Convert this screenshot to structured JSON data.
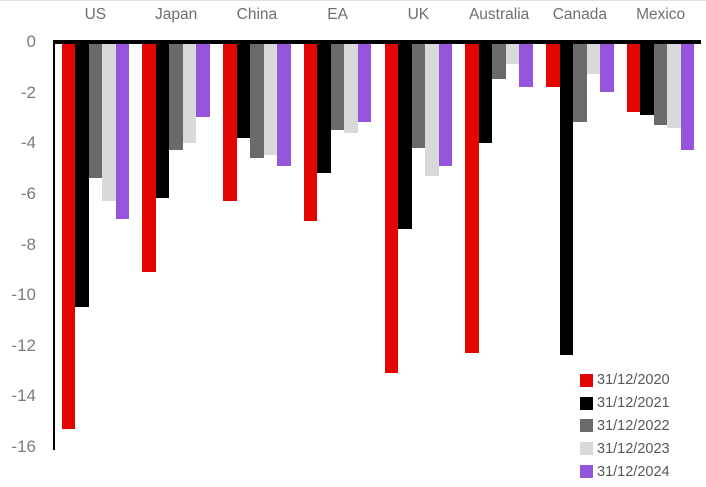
{
  "chart_data": {
    "type": "bar",
    "orientation": "vertical-negative",
    "title": "",
    "xlabel": "",
    "ylabel": "",
    "grid": false,
    "legend_position": "bottom-right",
    "ylim": [
      -16,
      0
    ],
    "y_ticks": [
      0,
      -2,
      -4,
      -6,
      -8,
      -10,
      -12,
      -14,
      -16
    ],
    "categories": [
      "US",
      "Japan",
      "China",
      "EA",
      "UK",
      "Australia",
      "Canada",
      "Mexico"
    ],
    "series": [
      {
        "name": "31/12/2020",
        "color": "#e10600",
        "values": [
          -15.2,
          -9.0,
          -6.2,
          -7.0,
          -13.0,
          -12.2,
          -1.7,
          -2.7
        ]
      },
      {
        "name": "31/12/2021",
        "color": "#000000",
        "values": [
          -10.4,
          -6.1,
          -3.7,
          -5.1,
          -7.3,
          -3.9,
          -12.3,
          -2.8
        ]
      },
      {
        "name": "31/12/2022",
        "color": "#6a6a6a",
        "values": [
          -5.3,
          -4.2,
          -4.5,
          -3.4,
          -4.1,
          -1.4,
          -3.1,
          -3.2
        ]
      },
      {
        "name": "31/12/2023",
        "color": "#d9d9d9",
        "values": [
          -6.2,
          -3.9,
          -4.4,
          -3.5,
          -5.2,
          -0.8,
          -1.2,
          -3.3
        ]
      },
      {
        "name": "31/12/2024",
        "color": "#9455dc",
        "values": [
          -6.9,
          -2.9,
          -4.8,
          -3.1,
          -4.8,
          -1.7,
          -1.9,
          -4.2
        ]
      }
    ]
  },
  "styles": {
    "background": "#ffffff",
    "axis_line_color": "#000000",
    "tick_label_color": "#7b7b7b",
    "category_label_color": "#6f6f6f",
    "legend_text_color": "#595959"
  }
}
